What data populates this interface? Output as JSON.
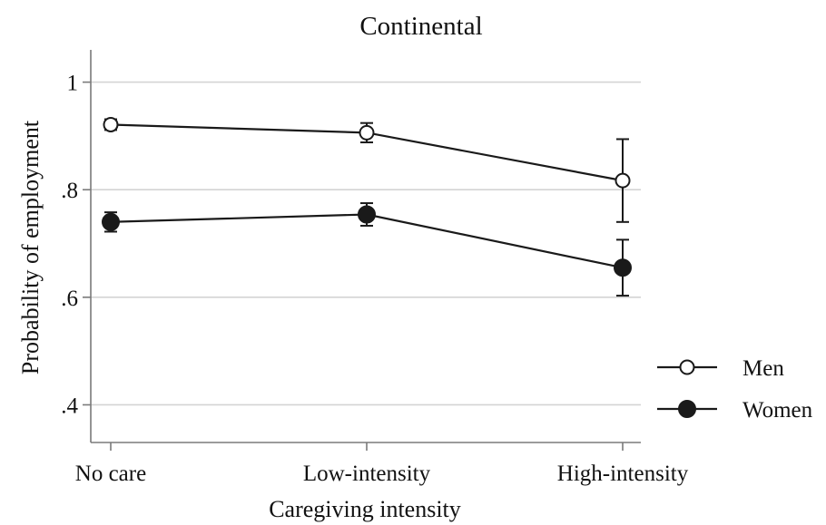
{
  "chart_data": {
    "type": "line",
    "title": "Continental",
    "xlabel": "Caregiving intensity",
    "ylabel": "Probability of employment",
    "categories": [
      "No care",
      "Low-intensity",
      "High-intensity"
    ],
    "yticks": [
      {
        "value": 0.4,
        "label": ".4"
      },
      {
        "value": 0.6,
        "label": ".6"
      },
      {
        "value": 0.8,
        "label": ".8"
      },
      {
        "value": 1.0,
        "label": "1"
      }
    ],
    "ylim": [
      0.33,
      1.06
    ],
    "grid": true,
    "legend_position": "right",
    "series": [
      {
        "name": "Men",
        "marker": "hollow-circle",
        "values": [
          0.921,
          0.906,
          0.817
        ],
        "ci_low": [
          0.911,
          0.888,
          0.74
        ],
        "ci_high": [
          0.931,
          0.924,
          0.894
        ]
      },
      {
        "name": "Women",
        "marker": "filled-circle",
        "values": [
          0.74,
          0.754,
          0.655
        ],
        "ci_low": [
          0.722,
          0.733,
          0.603
        ],
        "ci_high": [
          0.758,
          0.775,
          0.707
        ]
      }
    ],
    "colors": {
      "line": "#1a1a1a",
      "grid": "#d4d4d4",
      "axis": "#7a7a7a"
    }
  }
}
